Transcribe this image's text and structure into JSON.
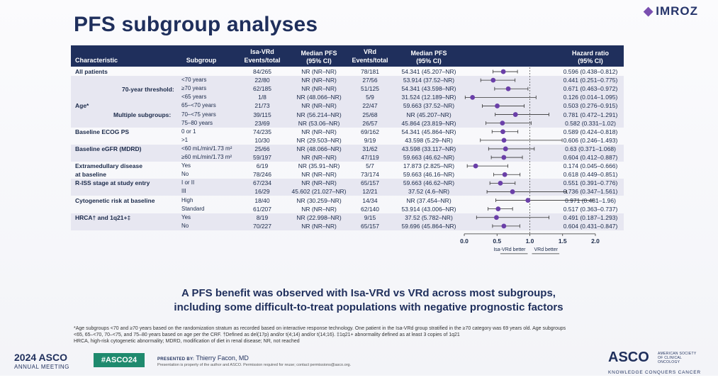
{
  "title": "PFS subgroup analyses",
  "logo": {
    "name": "IMROZ"
  },
  "headers": {
    "characteristic": "Characteristic",
    "subgroup": "Subgroup",
    "isa_vrd": "Isa-VRd",
    "events_total_1": "Events/total",
    "median_pfs_1": "Median PFS",
    "ci_1": "(95% CI)",
    "vrd": "VRd",
    "events_total_2": "Events/total",
    "median_pfs_2": "Median PFS",
    "ci_2": "(95% CI)",
    "hazard_ratio": "Hazard ratio",
    "ci_3": "(95% CI)"
  },
  "group_labels": {
    "age": "Age*",
    "age_70": "70-year threshold:",
    "age_multi": "Multiple subgroups:"
  },
  "rows": [
    {
      "characteristic": "All patients",
      "subgroup": "",
      "isa_et": "84/265",
      "isa_pfs": "NR (NR–NR)",
      "vrd_et": "78/181",
      "vrd_pfs": "54.341 (45.207–NR)",
      "hr_text": "0.596 (0.438–0.812)"
    },
    {
      "characteristic": "",
      "subgroup": "<70 years",
      "isa_et": "22/80",
      "isa_pfs": "NR (NR–NR)",
      "vrd_et": "27/56",
      "vrd_pfs": "53.914 (37.52–NR)",
      "hr_text": "0.441 (0.251–0.775)"
    },
    {
      "characteristic": "",
      "subgroup": "≥70 years",
      "isa_et": "62/185",
      "isa_pfs": "NR (NR–NR)",
      "vrd_et": "51/125",
      "vrd_pfs": "54.341 (43.598–NR)",
      "hr_text": "0.671 (0.463–0.972)"
    },
    {
      "characteristic": "",
      "subgroup": "<65 years",
      "isa_et": "1/8",
      "isa_pfs": "NR (48.066–NR)",
      "vrd_et": "5/9",
      "vrd_pfs": "31.524 (12.189–NR)",
      "hr_text": "0.126 (0.014–1.095)"
    },
    {
      "characteristic": "",
      "subgroup": "65–<70 years",
      "isa_et": "21/73",
      "isa_pfs": "NR (NR–NR)",
      "vrd_et": "22/47",
      "vrd_pfs": "59.663 (37.52–NR)",
      "hr_text": "0.503 (0.276–0.915)"
    },
    {
      "characteristic": "",
      "subgroup": "70–<75 years",
      "isa_et": "39/115",
      "isa_pfs": "NR (56.214–NR)",
      "vrd_et": "25/68",
      "vrd_pfs": "NR (45.207–NR)",
      "hr_text": "0.781 (0.472–1.291)"
    },
    {
      "characteristic": "",
      "subgroup": "75–80 years",
      "isa_et": "23/69",
      "isa_pfs": "NR (53.06–NR)",
      "vrd_et": "26/57",
      "vrd_pfs": "45.864 (23.819–NR)",
      "hr_text": "0.582 (0.331–1.02)"
    },
    {
      "characteristic": "Baseline ECOG PS",
      "subgroup": "0 or 1",
      "isa_et": "74/235",
      "isa_pfs": "NR (NR–NR)",
      "vrd_et": "69/162",
      "vrd_pfs": "54.341 (45.864–NR)",
      "hr_text": "0.589 (0.424–0.818)"
    },
    {
      "characteristic": "",
      "subgroup": ">1",
      "isa_et": "10/30",
      "isa_pfs": "NR (29.503–NR)",
      "vrd_et": "9/19",
      "vrd_pfs": "43.598 (5.29–NR)",
      "hr_text": "0.606 (0.246–1.493)"
    },
    {
      "characteristic": "Baseline eGFR (MDRD)",
      "subgroup": "<60 mL/min/1.73 m²",
      "isa_et": "25/66",
      "isa_pfs": "NR (48.066–NR)",
      "vrd_et": "31/62",
      "vrd_pfs": "43.598 (33.117–NR)",
      "hr_text": "0.63 (0.371–1.068)"
    },
    {
      "characteristic": "",
      "subgroup": "≥60 mL/min/1.73 m²",
      "isa_et": "59/197",
      "isa_pfs": "NR (NR–NR)",
      "vrd_et": "47/119",
      "vrd_pfs": "59.663 (46.62–NR)",
      "hr_text": "0.604 (0.412–0.887)"
    },
    {
      "characteristic": "Extramedullary disease",
      "subgroup": "Yes",
      "isa_et": "6/19",
      "isa_pfs": "NR (35.91–NR)",
      "vrd_et": "5/7",
      "vrd_pfs": "17.873 (2.825–NR)",
      "hr_text": "0.174 (0.045–0.666)"
    },
    {
      "characteristic": "at baseline",
      "subgroup": "No",
      "isa_et": "78/246",
      "isa_pfs": "NR (NR–NR)",
      "vrd_et": "73/174",
      "vrd_pfs": "59.663 (46.16–NR)",
      "hr_text": "0.618 (0.449–0.851)"
    },
    {
      "characteristic": "R-ISS stage at study entry",
      "subgroup": "I or II",
      "isa_et": "67/234",
      "isa_pfs": "NR (NR–NR)",
      "vrd_et": "65/157",
      "vrd_pfs": "59.663 (46.62–NR)",
      "hr_text": "0.551 (0.391–0.776)"
    },
    {
      "characteristic": "",
      "subgroup": "III",
      "isa_et": "16/29",
      "isa_pfs": "45.602 (21.027–NR)",
      "vrd_et": "12/21",
      "vrd_pfs": "37.52 (4.6–NR)",
      "hr_text": "0.736 (0.347–1.561)"
    },
    {
      "characteristic": "Cytogenetic risk at baseline",
      "subgroup": "High",
      "isa_et": "18/40",
      "isa_pfs": "NR (30.259–NR)",
      "vrd_et": "14/34",
      "vrd_pfs": "NR (37.454–NR)",
      "hr_text": "0.971 (0.481–1.96)"
    },
    {
      "characteristic": "",
      "subgroup": "Standard",
      "isa_et": "61/207",
      "isa_pfs": "NR (NR–NR)",
      "vrd_et": "62/140",
      "vrd_pfs": "53.914 (43.006–NR)",
      "hr_text": "0.517 (0.363–0.737)"
    },
    {
      "characteristic": "HRCA† and 1q21+‡",
      "subgroup": "Yes",
      "isa_et": "8/19",
      "isa_pfs": "NR (22.998–NR)",
      "vrd_et": "9/15",
      "vrd_pfs": "37.52 (5.782–NR)",
      "hr_text": "0.491 (0.187–1.293)"
    },
    {
      "characteristic": "",
      "subgroup": "No",
      "isa_et": "70/227",
      "isa_pfs": "NR (NR–NR)",
      "vrd_et": "65/157",
      "vrd_pfs": "59.696 (45.864–NR)",
      "hr_text": "0.604 (0.431–0.847)"
    }
  ],
  "chart_data": {
    "type": "forest",
    "x_ticks": [
      "0.0",
      "0.5",
      "1.0",
      "1.5",
      "2.0"
    ],
    "xlim": [
      0,
      2
    ],
    "reference_line": 1.0,
    "direction_labels": {
      "left": "Isa-VRd better",
      "right": "VRd better"
    },
    "series": [
      {
        "hr": 0.596,
        "lo": 0.438,
        "hi": 0.812
      },
      {
        "hr": 0.441,
        "lo": 0.251,
        "hi": 0.775
      },
      {
        "hr": 0.671,
        "lo": 0.463,
        "hi": 0.972
      },
      {
        "hr": 0.126,
        "lo": 0.014,
        "hi": 1.095
      },
      {
        "hr": 0.503,
        "lo": 0.276,
        "hi": 0.915
      },
      {
        "hr": 0.781,
        "lo": 0.472,
        "hi": 1.291
      },
      {
        "hr": 0.582,
        "lo": 0.331,
        "hi": 1.02
      },
      {
        "hr": 0.589,
        "lo": 0.424,
        "hi": 0.818
      },
      {
        "hr": 0.606,
        "lo": 0.246,
        "hi": 1.493
      },
      {
        "hr": 0.63,
        "lo": 0.371,
        "hi": 1.068
      },
      {
        "hr": 0.604,
        "lo": 0.412,
        "hi": 0.887
      },
      {
        "hr": 0.174,
        "lo": 0.045,
        "hi": 0.666
      },
      {
        "hr": 0.618,
        "lo": 0.449,
        "hi": 0.851
      },
      {
        "hr": 0.551,
        "lo": 0.391,
        "hi": 0.776
      },
      {
        "hr": 0.736,
        "lo": 0.347,
        "hi": 1.561
      },
      {
        "hr": 0.971,
        "lo": 0.481,
        "hi": 1.96
      },
      {
        "hr": 0.517,
        "lo": 0.363,
        "hi": 0.737
      },
      {
        "hr": 0.491,
        "lo": 0.187,
        "hi": 1.293
      },
      {
        "hr": 0.604,
        "lo": 0.431,
        "hi": 0.847
      }
    ],
    "colors": {
      "marker": "#6a3fa8",
      "band": "#e7e7f1",
      "header": "#1f2f5c"
    }
  },
  "banner": {
    "line1": "A PFS benefit was observed with Isa-VRd vs VRd across most subgroups,",
    "line2": "including some difficult-to-treat populations with negative prognostic factors"
  },
  "footnote": {
    "line1": "*Age subgroups <70 and ≥70 years based on the randomization stratum as recorded based on interactive response technology. One patient in the Isa-VRd group stratified in the ≥70 category was 69 years old. Age subgroups",
    "line2": "<65, 65–<70, 70–<75, and 75–80 years based on age per the CRF. †Defined as del(17p) and/or t(4;14) and/or t(14;16). ‡1q21+ abnormality defined as at least 3 copies of 1q21",
    "line3": "HRCA, high-risk cytogenetic abnormality; MDRD, modification of diet in renal disease; NR, not reached"
  },
  "footer": {
    "meeting_year": "2024",
    "meeting_name": "ASCO",
    "meeting_sub": "ANNUAL MEETING",
    "hashtag": "#ASCO24",
    "presented_by": "PRESENTED BY:",
    "presenter": "Thierry Facon, MD",
    "permission": "Presentation is property of the author and ASCO. Permission required for reuse; contact permissions@asco.org.",
    "asco_logo": "ASCO",
    "asco_society": "AMERICAN SOCIETY OF CLINICAL ONCOLOGY",
    "asco_tagline": "KNOWLEDGE CONQUERS CANCER"
  }
}
